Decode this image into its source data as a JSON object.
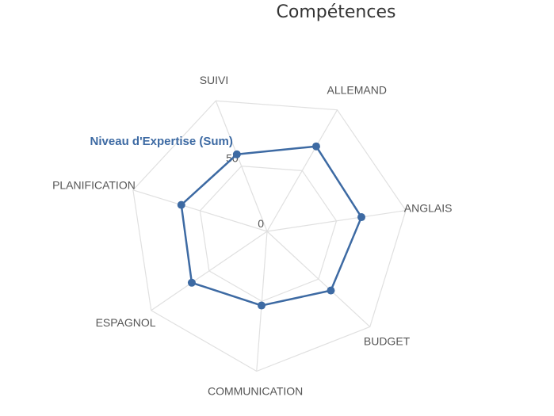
{
  "chart_data": {
    "type": "radar",
    "title": "Compétences",
    "categories": [
      "ALLEMAND",
      "ANGLAIS",
      "BUDGET",
      "COMMUNICATION",
      "ESPAGNOL",
      "PLANIFICATION",
      "SUIVI"
    ],
    "series": [
      {
        "name": "Niveau d'Expertise (Sum)",
        "values": [
          70,
          68,
          62,
          53,
          65,
          64,
          59
        ],
        "color": "#3d6aa3"
      }
    ],
    "range": [
      0,
      100
    ],
    "tick_labels": [
      "0",
      "50"
    ],
    "grid": true,
    "grid_color": "#e0e0e0"
  }
}
